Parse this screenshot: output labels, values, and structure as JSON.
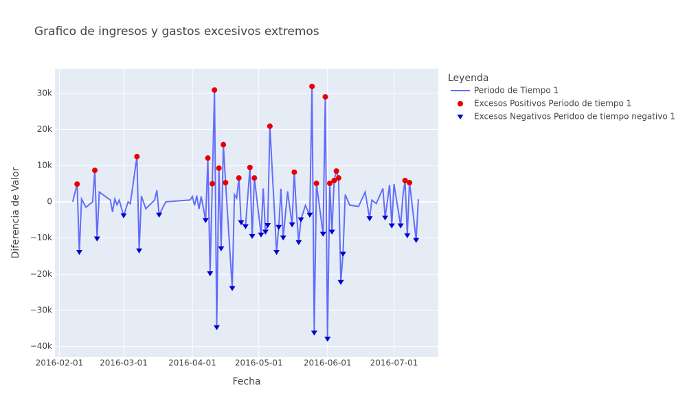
{
  "chart_data": {
    "type": "line",
    "title": "Grafico de ingresos y gastos excesivos extremos",
    "x_label": "Fecha",
    "y_label": "Diferencia de Valor",
    "legend_title": "Leyenda",
    "legend_position": "right",
    "grid": true,
    "xlim": [
      "2016-01-30",
      "2016-07-21"
    ],
    "xticks": [
      "2016-02-01",
      "2016-03-01",
      "2016-04-01",
      "2016-05-01",
      "2016-06-01",
      "2016-07-01"
    ],
    "ylim": [
      -42900,
      36800
    ],
    "yticks": [
      {
        "value": -40000,
        "label": "−40k"
      },
      {
        "value": -30000,
        "label": "−30k"
      },
      {
        "value": -20000,
        "label": "−20k"
      },
      {
        "value": -10000,
        "label": "−10k"
      },
      0,
      {
        "value": 10000,
        "label": "10k"
      },
      {
        "value": 20000,
        "label": "20k"
      },
      {
        "value": 30000,
        "label": "30k"
      }
    ],
    "series": [
      {
        "name": "Periodo de Tiempo 1",
        "color": "#636efa",
        "mode": "lines",
        "x": [
          "2016-02-07",
          "2016-02-09",
          "2016-02-10",
          "2016-02-11",
          "2016-02-13",
          "2016-02-16",
          "2016-02-17",
          "2016-02-18",
          "2016-02-19",
          "2016-02-24",
          "2016-02-25",
          "2016-02-26",
          "2016-02-27",
          "2016-02-28",
          "2016-03-01",
          "2016-03-03",
          "2016-03-04",
          "2016-03-07",
          "2016-03-08",
          "2016-03-09",
          "2016-03-11",
          "2016-03-15",
          "2016-03-16",
          "2016-03-17",
          "2016-03-20",
          "2016-03-31",
          "2016-04-01",
          "2016-04-02",
          "2016-04-03",
          "2016-04-04",
          "2016-04-05",
          "2016-04-07",
          "2016-04-08",
          "2016-04-09",
          "2016-04-10",
          "2016-04-11",
          "2016-04-12",
          "2016-04-13",
          "2016-04-14",
          "2016-04-15",
          "2016-04-16",
          "2016-04-19",
          "2016-04-20",
          "2016-04-21",
          "2016-04-22",
          "2016-04-23",
          "2016-04-25",
          "2016-04-27",
          "2016-04-28",
          "2016-04-29",
          "2016-05-02",
          "2016-05-03",
          "2016-05-04",
          "2016-05-05",
          "2016-05-06",
          "2016-05-09",
          "2016-05-10",
          "2016-05-11",
          "2016-05-12",
          "2016-05-14",
          "2016-05-16",
          "2016-05-17",
          "2016-05-18",
          "2016-05-19",
          "2016-05-20",
          "2016-05-22",
          "2016-05-24",
          "2016-05-25",
          "2016-05-26",
          "2016-05-27",
          "2016-05-30",
          "2016-05-31",
          "2016-06-01",
          "2016-06-02",
          "2016-06-03",
          "2016-06-04",
          "2016-06-05",
          "2016-06-06",
          "2016-06-07",
          "2016-06-08",
          "2016-06-09",
          "2016-06-11",
          "2016-06-15",
          "2016-06-18",
          "2016-06-20",
          "2016-06-21",
          "2016-06-23",
          "2016-06-26",
          "2016-06-27",
          "2016-06-29",
          "2016-06-30",
          "2016-07-01",
          "2016-07-04",
          "2016-07-05",
          "2016-07-06",
          "2016-07-07",
          "2016-07-08",
          "2016-07-09",
          "2016-07-11",
          "2016-07-12"
        ],
        "values": [
          0,
          4900,
          -13900,
          800,
          -1500,
          0,
          8700,
          -10200,
          2700,
          500,
          -2800,
          800,
          -800,
          500,
          -3800,
          0,
          -500,
          12500,
          -13500,
          1600,
          -1900,
          500,
          3200,
          -3600,
          0,
          500,
          1500,
          -1000,
          1700,
          -2000,
          1500,
          -5100,
          12100,
          -19800,
          5000,
          30900,
          -34700,
          9300,
          -12900,
          15800,
          5300,
          -23900,
          2000,
          1000,
          6600,
          -5700,
          -6800,
          9500,
          -9500,
          6600,
          -9100,
          3700,
          -8300,
          -6500,
          20900,
          -13900,
          -7000,
          3600,
          -9900,
          2900,
          -6300,
          8200,
          -3000,
          -11200,
          -4900,
          -1000,
          -3600,
          31900,
          -36200,
          5100,
          -8900,
          29000,
          -37900,
          5100,
          -8300,
          5900,
          8500,
          6600,
          -22200,
          -14400,
          2000,
          -900,
          -1300,
          2700,
          -4600,
          500,
          -500,
          3700,
          -4400,
          4700,
          -6600,
          4900,
          -6600,
          1500,
          5900,
          -9300,
          5300,
          200,
          -10600,
          700
        ]
      },
      {
        "name": "Excesos Positivos Periodo de tiempo 1",
        "color": "#e60000",
        "mode": "markers",
        "marker": "circle",
        "x": [
          "2016-02-09",
          "2016-02-17",
          "2016-03-07",
          "2016-04-08",
          "2016-04-10",
          "2016-04-11",
          "2016-04-13",
          "2016-04-15",
          "2016-04-16",
          "2016-04-22",
          "2016-04-27",
          "2016-04-29",
          "2016-05-06",
          "2016-05-17",
          "2016-05-25",
          "2016-05-27",
          "2016-05-31",
          "2016-06-02",
          "2016-06-04",
          "2016-06-05",
          "2016-06-06",
          "2016-07-06",
          "2016-07-08"
        ],
        "values": [
          4900,
          8700,
          12500,
          12100,
          5000,
          30900,
          9300,
          15800,
          5300,
          6600,
          9500,
          6600,
          20900,
          8200,
          31900,
          5100,
          29000,
          5100,
          5900,
          8500,
          6600,
          5900,
          5300
        ]
      },
      {
        "name": "Excesos Negativos Peridoo de tiempo negativo 1",
        "color": "#0000cc",
        "mode": "markers",
        "marker": "triangle-down",
        "x": [
          "2016-02-10",
          "2016-02-18",
          "2016-03-01",
          "2016-03-08",
          "2016-03-17",
          "2016-04-07",
          "2016-04-09",
          "2016-04-12",
          "2016-04-14",
          "2016-04-19",
          "2016-04-23",
          "2016-04-25",
          "2016-04-28",
          "2016-05-02",
          "2016-05-04",
          "2016-05-05",
          "2016-05-09",
          "2016-05-10",
          "2016-05-12",
          "2016-05-16",
          "2016-05-19",
          "2016-05-20",
          "2016-05-24",
          "2016-05-26",
          "2016-05-30",
          "2016-06-01",
          "2016-06-03",
          "2016-06-07",
          "2016-06-08",
          "2016-06-20",
          "2016-06-27",
          "2016-06-30",
          "2016-07-04",
          "2016-07-07",
          "2016-07-11"
        ],
        "values": [
          -13900,
          -10200,
          -3800,
          -13500,
          -3600,
          -5100,
          -19800,
          -34700,
          -12900,
          -23900,
          -5700,
          -6800,
          -9500,
          -9100,
          -8300,
          -6500,
          -13900,
          -7000,
          -9900,
          -6300,
          -11200,
          -4900,
          -3600,
          -36200,
          -8900,
          -37900,
          -8300,
          -22200,
          -14400,
          -4600,
          -4400,
          -6600,
          -6600,
          -9300,
          -10600
        ]
      }
    ]
  }
}
